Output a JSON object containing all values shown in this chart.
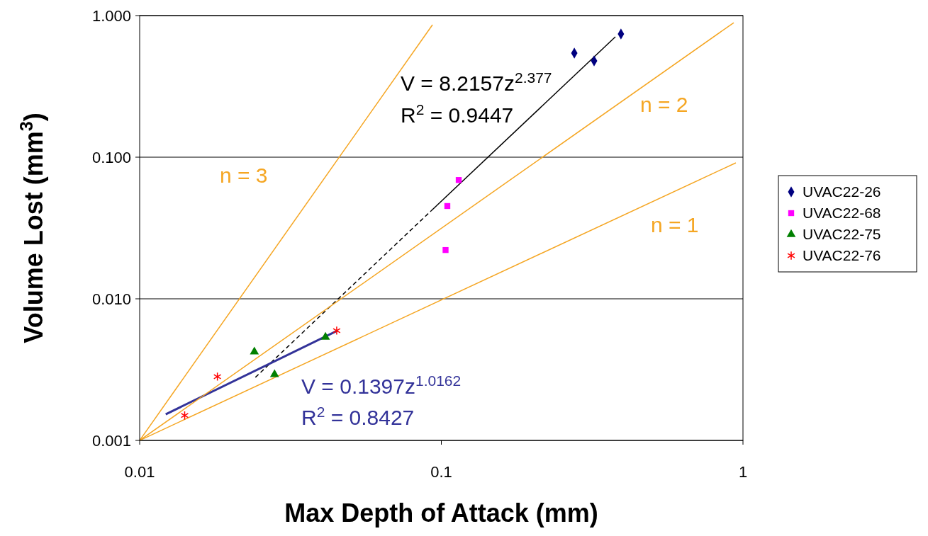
{
  "chart_data": {
    "type": "scatter",
    "xlabel": "Max Depth of Attack (mm)",
    "ylabel": "Volume Lost (mm$^{3}$)",
    "log": "xy",
    "xlim": [
      0.01,
      1
    ],
    "ylim": [
      0.001,
      1
    ],
    "xticks": [
      0.01,
      0.1,
      1
    ],
    "yticks": [
      {
        "value": 0.001,
        "label": "0.001"
      },
      {
        "value": 0.01,
        "label": "0.010"
      },
      {
        "value": 0.1,
        "label": "0.100"
      },
      {
        "value": 1,
        "label": "1.000"
      }
    ],
    "grid": "y",
    "legend": "right",
    "series": [
      {
        "name": "UVAC22-26",
        "color": "#000080",
        "marker": "diamond",
        "x": [
          0.276,
          0.321,
          0.394
        ],
        "values": [
          0.543,
          0.479,
          0.741
        ]
      },
      {
        "name": "UVAC22-68",
        "color": "#ff00ff",
        "marker": "square",
        "x": [
          0.1142,
          0.1047,
          0.1033
        ],
        "values": [
          0.069,
          0.0452,
          0.0221
        ]
      },
      {
        "name": "UVAC22-75",
        "color": "#008000",
        "marker": "triangle",
        "x": [
          0.024,
          0.028,
          0.0413
        ],
        "values": [
          0.00422,
          0.00292,
          0.00537
        ]
      },
      {
        "name": "UVAC22-76",
        "color": "#ff0000",
        "marker": "cross",
        "x": [
          0.0141,
          0.0181,
          0.045
        ],
        "values": [
          0.0015,
          0.00282,
          0.00596
        ]
      },
      {
        "type": "line",
        "color": "#000000",
        "line_style": "solid",
        "x": [
          0.0924,
          0.3776
        ],
        "values": [
          0.0417,
          0.708
        ]
      },
      {
        "type": "line",
        "color": "#000000",
        "line_style": "dashed",
        "x": [
          0.0242,
          0.0924
        ],
        "values": [
          0.00279,
          0.0417
        ]
      },
      {
        "type": "line",
        "color": "#333399",
        "line_style": "solid",
        "x": [
          0.0122,
          0.0453
        ],
        "values": [
          0.00153,
          0.00596
        ]
      },
      {
        "type": "line",
        "color": "#f5a623",
        "line_style": "solid",
        "x": [
          0.01,
          0.947
        ],
        "values": [
          0.001,
          0.0912
        ]
      },
      {
        "type": "line",
        "color": "#f5a623",
        "line_style": "solid",
        "x": [
          0.01,
          0.932
        ],
        "values": [
          0.001,
          0.891
        ]
      },
      {
        "type": "line",
        "color": "#f5a623",
        "line_style": "solid",
        "x": [
          0.01,
          0.0935
        ],
        "values": [
          0.001,
          0.861
        ]
      }
    ],
    "annotations": [
      "V = 8.2157z$^{2.377}$",
      "R$^{2}$ = 0.9447",
      "V = 0.1397z$^{1.0162}$",
      "R$^{2}$ = 0.8427",
      "n = 3",
      "n = 2",
      "n = 1"
    ]
  }
}
